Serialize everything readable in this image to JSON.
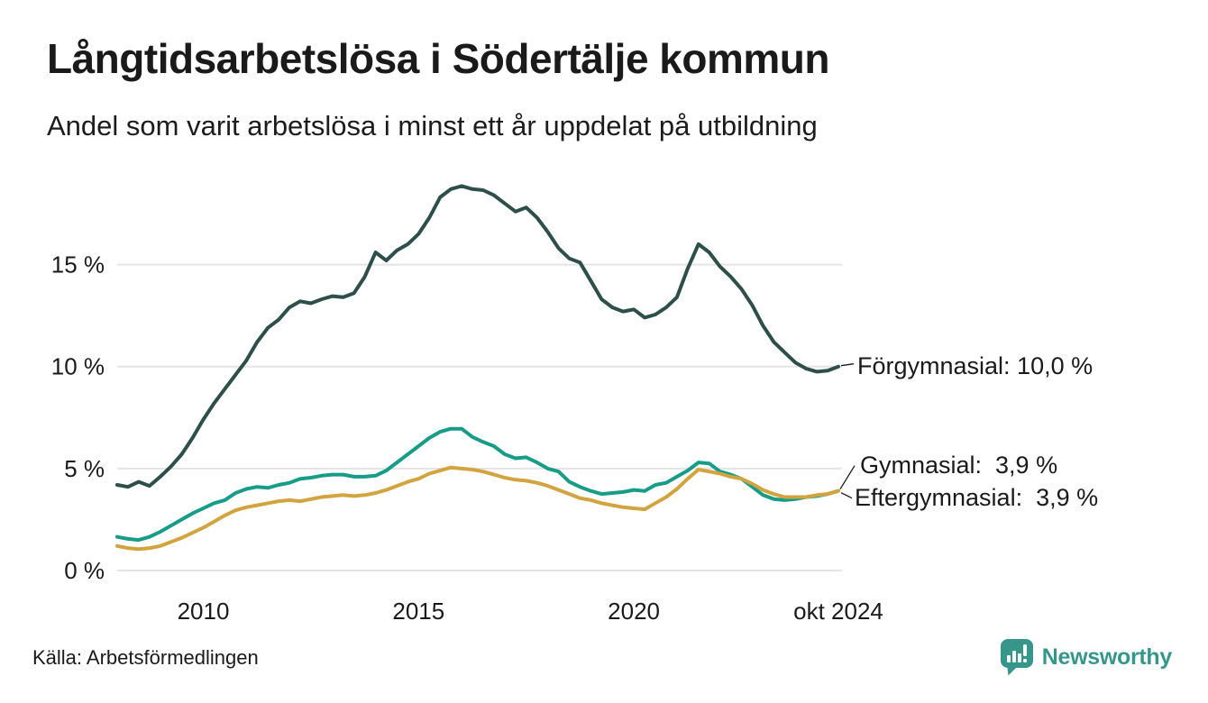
{
  "header": {
    "title": "Långtidsarbetslösa i Södertälje kommun",
    "subtitle": "Andel som varit arbetslösa i minst ett år uppdelat på utbildning"
  },
  "chart_data": {
    "type": "line",
    "title": "Långtidsarbetslösa i Södertälje kommun",
    "subtitle": "Andel som varit arbetslösa i minst ett år uppdelat på utbildning",
    "unit": "%",
    "x_start": 2008.0,
    "x_step": 0.25,
    "xlim": [
      2008.0,
      2024.75
    ],
    "ylim": [
      0,
      19.6
    ],
    "grid": "horizontal",
    "legend_position": "end-of-line-labels",
    "x_ticks": [
      {
        "x": 2010,
        "label": "2010"
      },
      {
        "x": 2015,
        "label": "2015"
      },
      {
        "x": 2020,
        "label": "2020"
      },
      {
        "x": 2024.75,
        "label": "okt 2024"
      }
    ],
    "y_ticks": [
      {
        "v": 0,
        "label": "0 %"
      },
      {
        "v": 5,
        "label": "5 %"
      },
      {
        "v": 10,
        "label": "10 %"
      },
      {
        "v": 15,
        "label": "15 %"
      }
    ],
    "series": [
      {
        "name": "Förgymnasial",
        "color": "#2e4f49",
        "end_value": "10,0 %",
        "end_value_label": "Förgymnasial: 10,0 %",
        "values": [
          4.2,
          4.1,
          4.35,
          4.15,
          4.6,
          5.1,
          5.7,
          6.5,
          7.4,
          8.2,
          8.9,
          9.6,
          10.3,
          11.2,
          11.9,
          12.3,
          12.9,
          13.2,
          13.1,
          13.3,
          13.45,
          13.4,
          13.6,
          14.4,
          15.6,
          15.2,
          15.7,
          16.0,
          16.5,
          17.3,
          18.3,
          18.7,
          18.85,
          18.7,
          18.65,
          18.4,
          18.0,
          17.6,
          17.8,
          17.3,
          16.6,
          15.8,
          15.3,
          15.1,
          14.2,
          13.3,
          12.9,
          12.7,
          12.8,
          12.4,
          12.55,
          12.9,
          13.4,
          14.8,
          16.0,
          15.6,
          14.9,
          14.4,
          13.8,
          13.0,
          12.0,
          11.2,
          10.7,
          10.2,
          9.9,
          9.75,
          9.8,
          10.0
        ]
      },
      {
        "name": "Gymnasial",
        "color": "#189b87",
        "end_value": "3,9 %",
        "end_value_label": "Gymnasial:  3,9 %",
        "values": [
          1.65,
          1.55,
          1.5,
          1.65,
          1.9,
          2.2,
          2.5,
          2.8,
          3.05,
          3.3,
          3.45,
          3.8,
          4.0,
          4.1,
          4.05,
          4.2,
          4.3,
          4.5,
          4.55,
          4.65,
          4.7,
          4.7,
          4.6,
          4.6,
          4.65,
          4.9,
          5.3,
          5.7,
          6.1,
          6.5,
          6.8,
          6.95,
          6.95,
          6.55,
          6.3,
          6.1,
          5.7,
          5.5,
          5.55,
          5.3,
          5.0,
          4.85,
          4.35,
          4.1,
          3.9,
          3.75,
          3.8,
          3.85,
          3.95,
          3.9,
          4.2,
          4.3,
          4.6,
          4.9,
          5.3,
          5.25,
          4.85,
          4.7,
          4.5,
          4.1,
          3.7,
          3.5,
          3.45,
          3.5,
          3.6,
          3.65,
          3.75,
          3.9
        ]
      },
      {
        "name": "Eftergymnasial",
        "color": "#d2a440",
        "end_value": "3,9 %",
        "end_value_label": "Eftergymnasial:  3,9 %",
        "values": [
          1.2,
          1.1,
          1.05,
          1.1,
          1.2,
          1.4,
          1.6,
          1.85,
          2.1,
          2.4,
          2.7,
          2.95,
          3.1,
          3.2,
          3.3,
          3.4,
          3.45,
          3.4,
          3.5,
          3.6,
          3.65,
          3.7,
          3.65,
          3.7,
          3.8,
          3.95,
          4.15,
          4.35,
          4.5,
          4.75,
          4.9,
          5.05,
          5.0,
          4.95,
          4.85,
          4.7,
          4.55,
          4.45,
          4.4,
          4.3,
          4.15,
          3.95,
          3.75,
          3.55,
          3.45,
          3.3,
          3.2,
          3.1,
          3.05,
          3.0,
          3.3,
          3.6,
          4.0,
          4.5,
          4.95,
          4.85,
          4.75,
          4.6,
          4.5,
          4.25,
          3.95,
          3.75,
          3.6,
          3.6,
          3.6,
          3.7,
          3.75,
          3.9
        ]
      }
    ]
  },
  "footer": {
    "source": "Källa: Arbetsförmedlingen",
    "brand_name": "Newsworthy"
  },
  "colors": {
    "background": "#ffffff",
    "text": "#1a1a1a",
    "gridline": "#e4e4e4",
    "connector": "#1a1a1a",
    "brand": "#37968a",
    "series_forgymnasial": "#2e4f49",
    "series_gymnasial": "#189b87",
    "series_eftergymnasial": "#d2a440"
  }
}
